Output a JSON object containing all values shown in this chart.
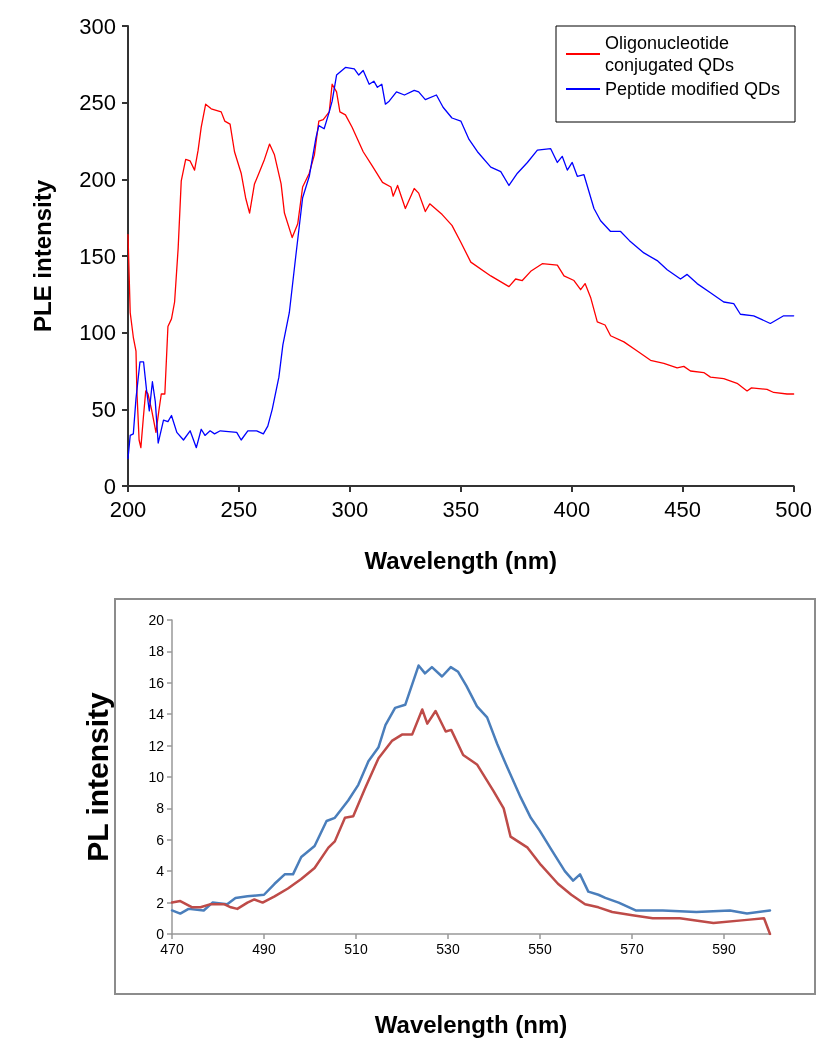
{
  "chart_data": [
    {
      "type": "line",
      "xlabel": "Wavelength (nm)",
      "ylabel": "PLE intensity",
      "xlim": [
        200,
        500
      ],
      "ylim": [
        0,
        300
      ],
      "xticks": [
        200,
        250,
        300,
        350,
        400,
        450,
        500
      ],
      "yticks": [
        0,
        50,
        100,
        150,
        200,
        250,
        300
      ],
      "grid": false,
      "legend": "top right",
      "marker": "none",
      "line_style": "solid",
      "series": [
        {
          "name": "Oligonucleotide conjugated QDs",
          "color": "#ff0000",
          "x": [
            200,
            201,
            202.4,
            203.6,
            204,
            205,
            205.8,
            207,
            208,
            209,
            210.6,
            212.6,
            214,
            215,
            216.6,
            218,
            219.6,
            221,
            222.6,
            224,
            226,
            228,
            230,
            231.6,
            233,
            235,
            237.5,
            242,
            243.6,
            246,
            248,
            251,
            253,
            254.8,
            257,
            259,
            261.5,
            263.8,
            266,
            269,
            270.5,
            274,
            276.5,
            278.7,
            281.7,
            284,
            286,
            288,
            290.7,
            292,
            294,
            295.5,
            298,
            301,
            306,
            310,
            314.7,
            318.5,
            319.5,
            321.5,
            325,
            329,
            331,
            334,
            336,
            341.6,
            346,
            350,
            354.5,
            363.5,
            371.7,
            374.7,
            377.7,
            381.5,
            386.7,
            393.5,
            396.5,
            401,
            404,
            406,
            408.5,
            411.5,
            415,
            417.5,
            423.5,
            429.5,
            435.5,
            441.5,
            447.5,
            450.5,
            453.5,
            459.5,
            462.5,
            468.5,
            474.5,
            479,
            481,
            488,
            491,
            497,
            500
          ],
          "values": [
            164,
            113,
            97,
            88,
            62,
            30,
            25,
            46,
            62,
            60,
            50,
            35,
            50,
            60,
            60,
            104,
            109,
            120,
            155,
            199,
            213,
            212,
            206,
            219,
            234,
            249,
            246,
            244,
            238,
            236,
            218,
            204,
            188,
            178,
            197,
            204,
            213,
            223,
            216,
            197,
            178,
            162,
            171,
            195,
            204,
            216,
            238,
            239,
            244,
            262,
            257,
            244,
            242,
            234,
            218,
            209,
            198,
            195,
            189,
            196,
            181,
            194,
            191,
            179,
            184,
            177,
            170,
            159,
            146,
            137,
            130,
            135,
            134,
            140,
            145,
            144,
            137,
            134,
            128,
            132,
            123,
            107,
            105,
            98,
            94,
            88,
            82,
            80,
            77,
            78,
            75,
            74,
            71,
            70,
            67,
            62,
            64,
            63,
            61,
            60,
            60
          ]
        },
        {
          "name": "Peptide modified QDs",
          "color": "#0000ff",
          "x": [
            200,
            201,
            202.4,
            203.6,
            205.4,
            207,
            208.4,
            209.6,
            211,
            212.3,
            213.6,
            216,
            218,
            219.6,
            222,
            225,
            228,
            230.8,
            233,
            234.7,
            237,
            239,
            241.6,
            249,
            251,
            254,
            258,
            261,
            263,
            265,
            268,
            269.8,
            272.7,
            275.7,
            278.7,
            281.7,
            284.7,
            286,
            288.4,
            290.7,
            292,
            294,
            298,
            302,
            304,
            306,
            308.7,
            310.8,
            312.4,
            314.4,
            316,
            317.7,
            321,
            324.6,
            329,
            331,
            334,
            339,
            342,
            346,
            350,
            353.7,
            357.5,
            363.5,
            368,
            371.7,
            375.5,
            380,
            384.5,
            390.5,
            393.5,
            395.7,
            398,
            400.2,
            402.5,
            405.5,
            410,
            413,
            417.5,
            422,
            426,
            432.5,
            438.5,
            443,
            449,
            452,
            456.5,
            462.5,
            468.5,
            473,
            476,
            482,
            489.5,
            495.5,
            500
          ],
          "values": [
            18,
            33,
            34,
            57,
            81,
            81,
            62,
            49,
            68,
            55,
            28,
            43,
            42,
            46,
            35,
            30,
            36,
            25,
            37,
            33,
            36,
            34,
            36,
            35,
            30,
            36,
            36,
            34,
            39,
            50,
            71,
            92,
            113,
            151,
            188,
            202,
            227,
            235,
            233,
            244,
            251,
            268,
            273,
            272,
            268,
            271,
            262,
            264,
            260,
            262,
            249,
            251,
            257,
            255,
            258,
            257,
            252,
            255,
            247,
            240,
            238,
            226,
            218,
            208,
            205,
            196,
            204,
            211,
            219,
            220,
            211,
            215,
            206,
            211,
            202,
            203,
            181,
            173,
            166,
            166,
            160,
            152,
            147,
            141,
            135,
            138,
            132,
            126,
            120,
            119,
            112,
            111,
            106,
            111,
            111
          ]
        }
      ]
    },
    {
      "type": "line",
      "xlabel": "Wavelength (nm)",
      "ylabel": "PL intensity",
      "xlim": [
        470,
        600
      ],
      "ylim": [
        0,
        20
      ],
      "xticks": [
        470,
        490,
        510,
        530,
        550,
        570,
        590
      ],
      "yticks": [
        0,
        2,
        4,
        6,
        8,
        10,
        12,
        14,
        16,
        18,
        20
      ],
      "grid": false,
      "legend": false,
      "marker": "none",
      "line_style": "solid",
      "series": [
        {
          "color": "#4a7ebb",
          "x": [
            470,
            471.8,
            473.6,
            476.9,
            478.8,
            482,
            483.8,
            486.4,
            490,
            492.3,
            494.5,
            496.3,
            498.1,
            501,
            503.6,
            505.4,
            508.3,
            510.5,
            512.7,
            514.9,
            516.4,
            518.5,
            520.7,
            523.6,
            525,
            526.5,
            528.7,
            530.6,
            532.2,
            534,
            536.3,
            538.5,
            540.7,
            542.9,
            545.8,
            548,
            549.9,
            552.4,
            555.4,
            557.2,
            558.7,
            560.5,
            562.7,
            564.2,
            567.1,
            570.8,
            576.7,
            584,
            591.3,
            595,
            600
          ],
          "values": [
            1.5,
            1.3,
            1.6,
            1.5,
            2,
            1.9,
            2.3,
            2.4,
            2.5,
            3.2,
            3.8,
            3.8,
            4.9,
            5.6,
            7.2,
            7.4,
            8.5,
            9.5,
            11,
            11.9,
            13.3,
            14.4,
            14.6,
            17.1,
            16.6,
            17,
            16.4,
            17,
            16.7,
            15.8,
            14.5,
            13.8,
            12.1,
            10.6,
            8.7,
            7.4,
            6.6,
            5.4,
            4,
            3.4,
            3.8,
            2.7,
            2.5,
            2.3,
            2,
            1.5,
            1.5,
            1.4,
            1.5,
            1.3,
            1.5
          ]
        },
        {
          "color": "#be4b48",
          "x": [
            470,
            471.8,
            474.4,
            476.2,
            478.4,
            481.3,
            482.8,
            484.2,
            486.4,
            487.9,
            489.7,
            492.3,
            495.2,
            498.1,
            501,
            504,
            505.4,
            507.6,
            509.4,
            512,
            514.9,
            517.8,
            520,
            522.2,
            524.4,
            525.5,
            527.3,
            529.5,
            530.7,
            533.3,
            536.3,
            539.9,
            542.1,
            543.6,
            547.3,
            550.2,
            553.9,
            556.8,
            559.8,
            562.7,
            565.7,
            570.1,
            574.5,
            580.4,
            587.7,
            595,
            598.7,
            600
          ],
          "values": [
            2,
            2.1,
            1.7,
            1.7,
            1.9,
            1.9,
            1.7,
            1.6,
            2,
            2.2,
            2,
            2.4,
            2.9,
            3.5,
            4.2,
            5.5,
            5.9,
            7.4,
            7.5,
            9.3,
            11.2,
            12.3,
            12.7,
            12.7,
            14.3,
            13.4,
            14.2,
            12.9,
            13,
            11.4,
            10.8,
            9.1,
            8,
            6.2,
            5.5,
            4.4,
            3.2,
            2.5,
            1.9,
            1.7,
            1.4,
            1.2,
            1,
            1,
            0.7,
            0.9,
            1,
            0
          ]
        }
      ]
    }
  ]
}
